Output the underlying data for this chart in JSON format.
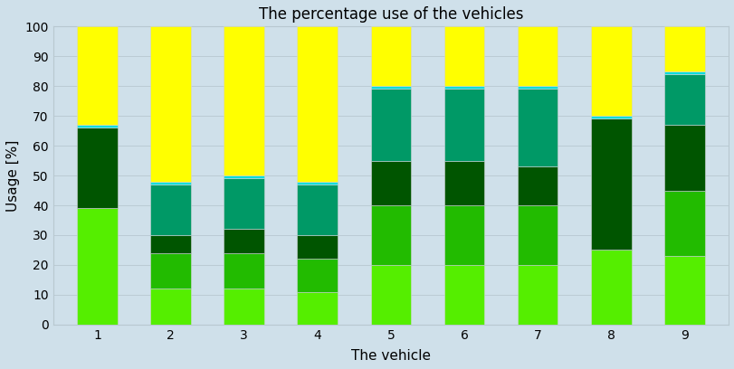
{
  "title": "The percentage use of the vehicles",
  "xlabel": "The vehicle",
  "ylabel": "Usage [%]",
  "vehicles": [
    1,
    2,
    3,
    4,
    5,
    6,
    7,
    8,
    9
  ],
  "segments": {
    "lime": [
      39,
      12,
      12,
      11,
      20,
      20,
      20,
      25,
      23
    ],
    "green": [
      0,
      12,
      12,
      11,
      20,
      20,
      20,
      0,
      22
    ],
    "dark_green": [
      27,
      6,
      8,
      8,
      15,
      15,
      13,
      44,
      22
    ],
    "teal": [
      0,
      17,
      17,
      17,
      24,
      24,
      26,
      0,
      17
    ],
    "cyan": [
      1,
      1,
      1,
      1,
      1,
      1,
      1,
      1,
      1
    ],
    "yellow": [
      33,
      52,
      50,
      52,
      20,
      20,
      20,
      30,
      15
    ]
  },
  "colors": {
    "lime": "#55ee00",
    "green": "#22bb00",
    "dark_green": "#005500",
    "teal": "#009966",
    "cyan": "#00dddd",
    "yellow": "#ffff00"
  },
  "ylim": [
    0,
    100
  ],
  "bg_color": "#cfe0ea",
  "bar_width": 0.55,
  "edgecolor": "#d0d4d8",
  "linewidth": 0.4,
  "title_fontsize": 12,
  "label_fontsize": 11,
  "tick_fontsize": 10
}
